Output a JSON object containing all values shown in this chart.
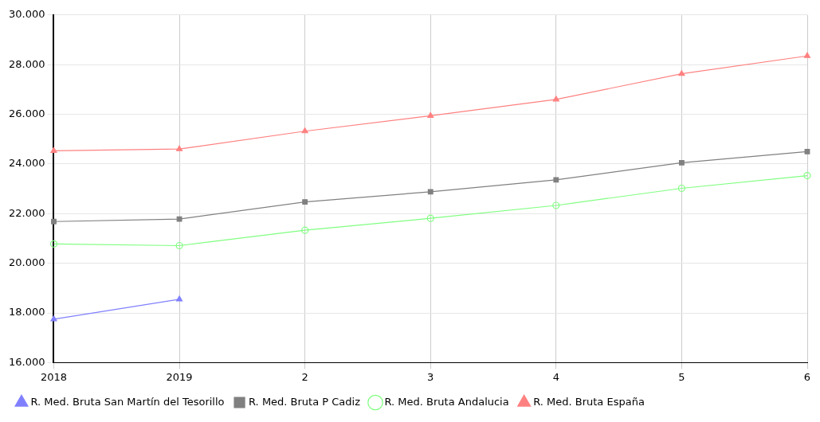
{
  "chart_data": {
    "type": "line",
    "categories": [
      "2018",
      "2019",
      "2",
      "3",
      "4",
      "5",
      "6"
    ],
    "series": [
      {
        "name": "R. Med. Bruta San Martín del Tesorillo",
        "color": "#8080ff",
        "marker": "triangle",
        "values": [
          17750,
          18550,
          null,
          null,
          null,
          null,
          null
        ]
      },
      {
        "name": "R. Med. Bruta P Cadiz",
        "color": "#808080",
        "marker": "square",
        "values": [
          21680,
          21780,
          22470,
          22880,
          23360,
          24050,
          24500
        ]
      },
      {
        "name": "R. Med. Bruta Andalucia",
        "color": "#80ff80",
        "marker": "circle",
        "values": [
          20780,
          20710,
          21330,
          21810,
          22330,
          23020,
          23530
        ]
      },
      {
        "name": "R. Med. Bruta España",
        "color": "#ff8080",
        "marker": "triangle",
        "values": [
          24530,
          24600,
          25320,
          25940,
          26600,
          27630,
          28350
        ]
      }
    ],
    "ylim": [
      16000,
      30000
    ],
    "yticks": [
      {
        "value": 16000,
        "label": "16.000"
      },
      {
        "value": 18000,
        "label": "18.000"
      },
      {
        "value": 20000,
        "label": "20.000"
      },
      {
        "value": 22000,
        "label": "22.000"
      },
      {
        "value": 24000,
        "label": "24.000"
      },
      {
        "value": 26000,
        "label": "26.000"
      },
      {
        "value": 28000,
        "label": "28.000"
      },
      {
        "value": 30000,
        "label": "30.000"
      }
    ],
    "grid": true,
    "legend": "bottom",
    "line_style": "solid"
  }
}
